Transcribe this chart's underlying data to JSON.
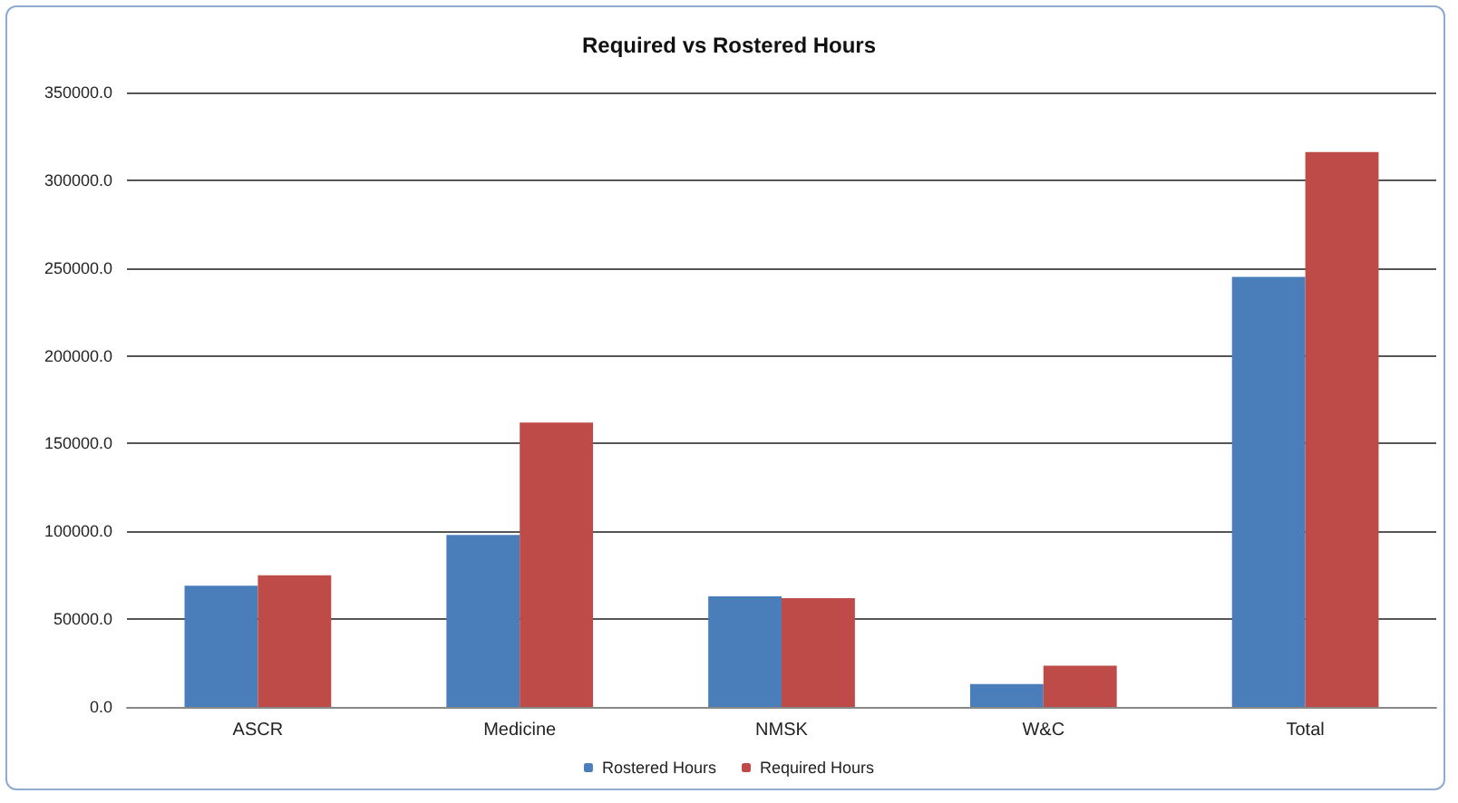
{
  "chart_data": {
    "type": "bar",
    "title": "Required vs Rostered Hours",
    "categories": [
      "ASCR",
      "Medicine",
      "NMSK",
      "W&C",
      "Total"
    ],
    "series": [
      {
        "name": "Rostered Hours",
        "color": "#4a7ebb",
        "values": [
          69000,
          98000,
          63000,
          13000,
          245000
        ]
      },
      {
        "name": "Required Hours",
        "color": "#be4b48",
        "values": [
          75000,
          162000,
          62000,
          23500,
          316000
        ]
      }
    ],
    "ylim": [
      0,
      350000
    ],
    "yticks": [
      {
        "value": 0,
        "label": "0.0"
      },
      {
        "value": 50000,
        "label": "50000.0"
      },
      {
        "value": 100000,
        "label": "100000.0"
      },
      {
        "value": 150000,
        "label": "150000.0"
      },
      {
        "value": 200000,
        "label": "200000.0"
      },
      {
        "value": 250000,
        "label": "250000.0"
      },
      {
        "value": 300000,
        "label": "300000.0"
      },
      {
        "value": 350000,
        "label": "350000.0"
      }
    ],
    "grid": "y",
    "legend": "bottom"
  }
}
